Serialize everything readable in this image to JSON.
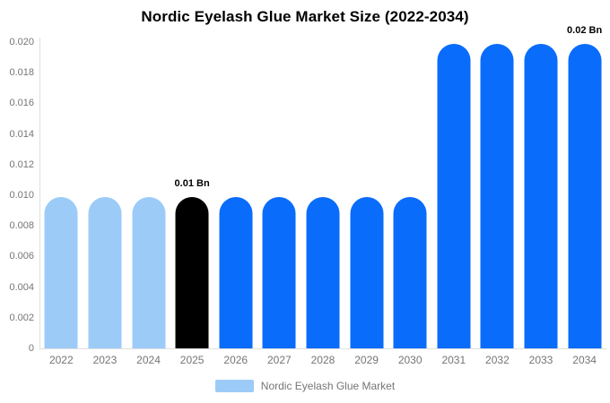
{
  "title": "Nordic Eyelash Glue Market Size (2022-2034)",
  "chart_data": {
    "type": "bar",
    "title": "Nordic Eyelash Glue Market Size (2022-2034)",
    "categories": [
      "2022",
      "2023",
      "2024",
      "2025",
      "2026",
      "2027",
      "2028",
      "2029",
      "2030",
      "2031",
      "2032",
      "2033",
      "2034"
    ],
    "series": [
      {
        "name": "Nordic Eyelash Glue Market",
        "values": [
          0.0099,
          0.0099,
          0.0099,
          0.0099,
          0.0099,
          0.0099,
          0.0099,
          0.0099,
          0.0099,
          0.0199,
          0.0199,
          0.0199,
          0.0199
        ]
      }
    ],
    "bar_colors": [
      "#9CCBF8",
      "#9CCBF8",
      "#9CCBF8",
      "#000000",
      "#0A6CFA",
      "#0A6CFA",
      "#0A6CFA",
      "#0A6CFA",
      "#0A6CFA",
      "#0A6CFA",
      "#0A6CFA",
      "#0A6CFA",
      "#0A6CFA"
    ],
    "annotations": [
      {
        "category": "2025",
        "text": "0.01 Bn"
      },
      {
        "category": "2034",
        "text": "0.02 Bn"
      }
    ],
    "xlabel": "",
    "ylabel": "",
    "ylim": [
      0,
      0.02
    ],
    "y_ticks": [
      "0.020",
      "0.018",
      "0.016",
      "0.014",
      "0.012",
      "0.010",
      "0.008",
      "0.006",
      "0.004",
      "0.002",
      "0"
    ],
    "grid": "none",
    "legend": {
      "position": "bottom",
      "label": "Nordic Eyelash Glue Market",
      "swatch_color": "#9CCBF8"
    }
  },
  "colors": {
    "background": "#FFFFFF",
    "axis_line": "#E0E0E0",
    "tick_text": "#757575",
    "annotation_text": "#000000",
    "bar_light_blue": "#9CCBF8",
    "bar_blue": "#0A6CFA",
    "bar_black": "#000000"
  }
}
